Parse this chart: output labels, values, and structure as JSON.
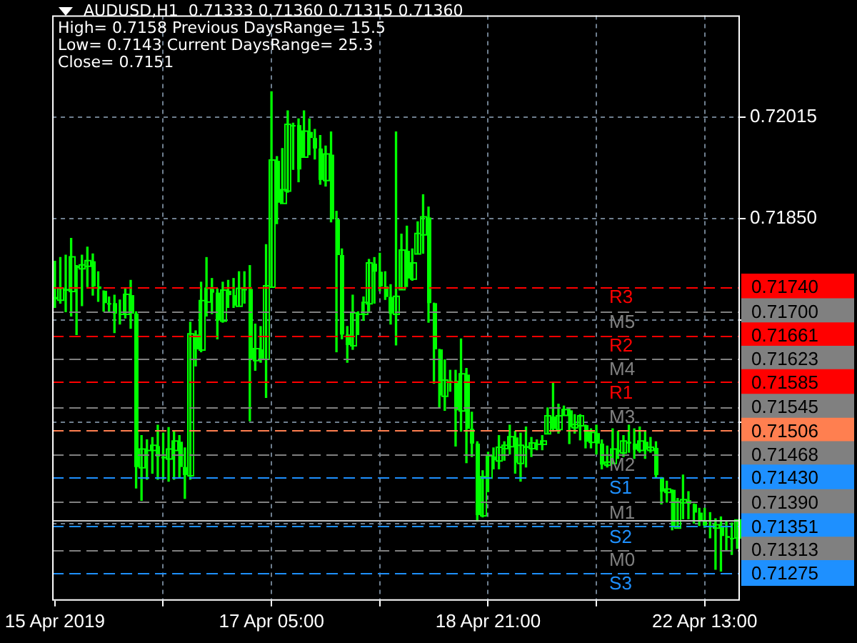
{
  "chart_data": {
    "type": "candlestick",
    "title": "AUDUSD,H1  0.71333 0.71360 0.71315 0.71360",
    "annotations": [
      "High= 0.7158 Previous DaysRange= 15.5",
      "Low= 0.7143 Current DaysRange= 25.3",
      "Close= 0.7151",
      {
        "text": "R3",
        "y": 0.7174
      },
      {
        "text": "M5",
        "y": 0.717
      },
      {
        "text": "R2",
        "y": 0.71661
      },
      {
        "text": "M4",
        "y": 0.71623
      },
      {
        "text": "R1",
        "y": 0.71585
      },
      {
        "text": "M3",
        "y": 0.71545
      },
      {
        "text": "M2",
        "y": 0.71468
      },
      {
        "text": "S1",
        "y": 0.7143
      },
      {
        "text": "M1",
        "y": 0.7139
      },
      {
        "text": "S2",
        "y": 0.71351
      },
      {
        "text": "M0",
        "y": 0.71313
      },
      {
        "text": "S3",
        "y": 0.71275
      }
    ],
    "categories": [
      "15 Apr 2019",
      null,
      null,
      null,
      null,
      null,
      null,
      null,
      null,
      null,
      null,
      null,
      null,
      null,
      null,
      null,
      null,
      null,
      null,
      null,
      null,
      null,
      null,
      null,
      null,
      null,
      null,
      null,
      null,
      null,
      null,
      null,
      null,
      null,
      null,
      null,
      null,
      null,
      null,
      null,
      "17 Apr 05:00",
      null,
      null,
      null,
      null,
      null,
      null,
      null,
      null,
      null,
      null,
      null,
      null,
      null,
      null,
      null,
      null,
      null,
      null,
      null,
      null,
      null,
      null,
      null,
      null,
      null,
      null,
      null,
      null,
      null,
      null,
      null,
      null,
      null,
      null,
      null,
      null,
      null,
      null,
      null,
      "18 Apr 21:00",
      null,
      null,
      null,
      null,
      null,
      null,
      null,
      null,
      null,
      null,
      null,
      null,
      null,
      null,
      null,
      null,
      null,
      null,
      null,
      null,
      null,
      null,
      null,
      null,
      null,
      null,
      null,
      null,
      null,
      null,
      null,
      null,
      null,
      null,
      null,
      null,
      null,
      null,
      null,
      "22 Apr 13:00",
      null,
      null,
      null,
      null,
      null,
      null
    ],
    "color": "#00ff00",
    "ohlc": [
      [
        0.71723,
        0.71781,
        0.71706,
        0.71719
      ],
      [
        0.71719,
        0.71787,
        0.71713,
        0.71736
      ],
      [
        0.71736,
        0.71791,
        0.71699,
        0.71733
      ],
      [
        0.71733,
        0.71818,
        0.71692,
        0.71787
      ],
      [
        0.71774,
        0.71774,
        0.71662,
        0.7177
      ],
      [
        0.7177,
        0.71791,
        0.71709,
        0.71774
      ],
      [
        0.71774,
        0.71804,
        0.7174,
        0.71781
      ],
      [
        0.71781,
        0.71793,
        0.71726,
        0.7174
      ],
      [
        0.7174,
        0.71764,
        0.71716,
        0.71736
      ],
      [
        0.71733,
        0.71733,
        0.717,
        0.71713
      ],
      [
        0.71713,
        0.71723,
        0.71699,
        0.71713
      ],
      [
        0.71713,
        0.71726,
        0.71665,
        0.71696
      ],
      [
        0.71696,
        0.71718,
        0.71679,
        0.71696
      ],
      [
        0.71696,
        0.71736,
        0.71689,
        0.71726
      ],
      [
        0.71726,
        0.7175,
        0.71672,
        0.71696
      ],
      [
        0.71696,
        0.71699,
        0.71413,
        0.71447
      ],
      [
        0.71447,
        0.71498,
        0.71393,
        0.71475
      ],
      [
        0.71475,
        0.71491,
        0.71427,
        0.71475
      ],
      [
        0.71475,
        0.71495,
        0.71437,
        0.71481
      ],
      [
        0.71481,
        0.71515,
        0.71427,
        0.71464
      ],
      [
        0.71464,
        0.71502,
        0.71427,
        0.71461
      ],
      [
        0.71461,
        0.71511,
        0.71424,
        0.71475
      ],
      [
        0.71475,
        0.71505,
        0.71427,
        0.71488
      ],
      [
        0.71488,
        0.71498,
        0.7143,
        0.71447
      ],
      [
        0.71447,
        0.71478,
        0.71396,
        0.71434
      ],
      [
        0.71434,
        0.71682,
        0.71427,
        0.71662
      ],
      [
        0.71662,
        0.71668,
        0.71611,
        0.71638
      ],
      [
        0.71638,
        0.71747,
        0.71634,
        0.71716
      ],
      [
        0.71716,
        0.71787,
        0.71692,
        0.71736
      ],
      [
        0.71736,
        0.71753,
        0.71696,
        0.7173
      ],
      [
        0.7173,
        0.71736,
        0.71655,
        0.71685
      ],
      [
        0.71685,
        0.71747,
        0.71682,
        0.71733
      ],
      [
        0.71733,
        0.7175,
        0.71706,
        0.71726
      ],
      [
        0.71726,
        0.71753,
        0.71706,
        0.71709
      ],
      [
        0.71709,
        0.71764,
        0.71709,
        0.71736
      ],
      [
        0.71736,
        0.71764,
        0.71713,
        0.71736
      ],
      [
        0.71736,
        0.71774,
        0.71522,
        0.71621
      ],
      [
        0.71621,
        0.71679,
        0.71604,
        0.71638
      ],
      [
        0.71638,
        0.71675,
        0.71617,
        0.71623
      ],
      [
        0.71623,
        0.71808,
        0.7156,
        0.7174
      ],
      [
        0.7174,
        0.72056,
        0.7174,
        0.71944
      ],
      [
        0.71944,
        0.71951,
        0.71842,
        0.71876
      ],
      [
        0.71876,
        0.71964,
        0.71876,
        0.71896
      ],
      [
        0.71896,
        0.72025,
        0.71893,
        0.72002
      ],
      [
        0.72002,
        0.72005,
        0.7193,
        0.72002
      ],
      [
        0.72002,
        0.72012,
        0.7191,
        0.7193
      ],
      [
        0.71951,
        0.72025,
        0.71951,
        0.71991
      ],
      [
        0.71991,
        0.72012,
        0.71954,
        0.71981
      ],
      [
        0.71981,
        0.71995,
        0.71947,
        0.71964
      ],
      [
        0.71964,
        0.71985,
        0.71906,
        0.71913
      ],
      [
        0.71913,
        0.71968,
        0.71903,
        0.71954
      ],
      [
        0.71954,
        0.71991,
        0.71845,
        0.71849
      ],
      [
        0.71849,
        0.71862,
        0.71634,
        0.71791
      ],
      [
        0.71791,
        0.71801,
        0.71655,
        0.71662
      ],
      [
        0.71662,
        0.71675,
        0.71617,
        0.71645
      ],
      [
        0.71645,
        0.71726,
        0.71638,
        0.71696
      ],
      [
        0.71696,
        0.71699,
        0.71662,
        0.71696
      ],
      [
        0.71696,
        0.71723,
        0.71685,
        0.71713
      ],
      [
        0.71713,
        0.71784,
        0.71699,
        0.71777
      ],
      [
        0.71777,
        0.71787,
        0.71713,
        0.71764
      ],
      [
        0.71764,
        0.71794,
        0.71733,
        0.7174
      ],
      [
        0.7174,
        0.71764,
        0.71719,
        0.71723
      ],
      [
        0.71723,
        0.71743,
        0.71679,
        0.71696
      ],
      [
        0.71696,
        0.71991,
        0.71645,
        0.71723
      ],
      [
        0.71736,
        0.71825,
        0.71736,
        0.71798
      ],
      [
        0.71798,
        0.71838,
        0.7174,
        0.71753
      ],
      [
        0.71753,
        0.71801,
        0.7175,
        0.71777
      ],
      [
        0.71794,
        0.71845,
        0.71794,
        0.71825
      ],
      [
        0.71825,
        0.71889,
        0.71794,
        0.71852
      ],
      [
        0.71852,
        0.71869,
        0.71682,
        0.71713
      ],
      [
        0.71713,
        0.71713,
        0.71583,
        0.71638
      ],
      [
        0.71638,
        0.71638,
        0.71543,
        0.71563
      ],
      [
        0.71563,
        0.71621,
        0.71539,
        0.71587
      ],
      [
        0.71587,
        0.71604,
        0.7157,
        0.71587
      ],
      [
        0.71587,
        0.71604,
        0.71481,
        0.71539
      ],
      [
        0.71539,
        0.71655,
        0.71505,
        0.71597
      ],
      [
        0.71597,
        0.71607,
        0.71454,
        0.71509
      ],
      [
        0.71509,
        0.71536,
        0.71464,
        0.71485
      ],
      [
        0.71485,
        0.71488,
        0.71359,
        0.71369
      ],
      [
        0.71369,
        0.71441,
        0.71366,
        0.7143
      ],
      [
        0.7143,
        0.71471,
        0.71407,
        0.71464
      ],
      [
        0.71464,
        0.71478,
        0.71444,
        0.71458
      ],
      [
        0.71458,
        0.71498,
        0.71444,
        0.71478
      ],
      [
        0.71478,
        0.71488,
        0.71458,
        0.71481
      ],
      [
        0.71481,
        0.71515,
        0.71468,
        0.71495
      ],
      [
        0.71495,
        0.71505,
        0.71437,
        0.71454
      ],
      [
        0.71454,
        0.71502,
        0.71424,
        0.71481
      ],
      [
        0.71481,
        0.71512,
        0.71447,
        0.71478
      ],
      [
        0.71478,
        0.71495,
        0.71464,
        0.71485
      ],
      [
        0.71485,
        0.71491,
        0.71475,
        0.71485
      ],
      [
        0.71485,
        0.71498,
        0.71475,
        0.71488
      ],
      [
        0.71502,
        0.71543,
        0.71502,
        0.71529
      ],
      [
        0.71529,
        0.71583,
        0.71505,
        0.71509
      ],
      [
        0.71509,
        0.71549,
        0.71502,
        0.71529
      ],
      [
        0.71532,
        0.71546,
        0.71532,
        0.71539
      ],
      [
        0.71539,
        0.71543,
        0.71485,
        0.71512
      ],
      [
        0.71512,
        0.71532,
        0.71502,
        0.71515
      ],
      [
        0.71515,
        0.71532,
        0.71491,
        0.71529
      ],
      [
        0.71515,
        0.71515,
        0.71478,
        0.71488
      ],
      [
        0.71488,
        0.71509,
        0.71478,
        0.71502
      ],
      [
        0.71502,
        0.71515,
        0.71468,
        0.71485
      ],
      [
        0.71485,
        0.71491,
        0.71444,
        0.71451
      ],
      [
        0.71451,
        0.71481,
        0.71447,
        0.71454
      ],
      [
        0.71454,
        0.71509,
        0.71454,
        0.71475
      ],
      [
        0.71475,
        0.71505,
        0.71461,
        0.71471
      ],
      [
        0.71471,
        0.71498,
        0.71464,
        0.71488
      ],
      [
        0.71488,
        0.71515,
        0.71471,
        0.71485
      ],
      [
        0.71485,
        0.71509,
        0.71461,
        0.71475
      ],
      [
        0.71475,
        0.71512,
        0.71471,
        0.71488
      ],
      [
        0.71488,
        0.71505,
        0.71461,
        0.71475
      ],
      [
        0.71475,
        0.71495,
        0.71471,
        0.71478
      ],
      [
        0.71478,
        0.71488,
        0.7143,
        0.71434
      ],
      [
        0.7143,
        0.7143,
        0.71387,
        0.71407
      ],
      [
        0.71407,
        0.71424,
        0.7139,
        0.7141
      ],
      [
        0.7141,
        0.7141,
        0.71345,
        0.71349
      ],
      [
        0.71349,
        0.71396,
        0.71349,
        0.7139
      ],
      [
        0.7139,
        0.71434,
        0.71363,
        0.71393
      ],
      [
        0.71393,
        0.71407,
        0.71363,
        0.71387
      ],
      [
        0.71387,
        0.71387,
        0.71356,
        0.71373
      ],
      [
        0.71373,
        0.7138,
        0.71352,
        0.71359
      ],
      [
        0.71359,
        0.7138,
        0.71349,
        0.71352
      ],
      [
        0.71352,
        0.71373,
        0.71332,
        0.71349
      ],
      [
        0.71349,
        0.71363,
        0.71281,
        0.71352
      ],
      [
        0.71352,
        0.71366,
        0.71278,
        0.71335
      ],
      [
        0.71335,
        0.71359,
        0.71311,
        0.71332
      ],
      [
        0.71332,
        0.71356,
        0.71305,
        0.71332
      ],
      [
        0.71333,
        0.7136,
        0.71315,
        0.7136
      ]
    ],
    "ylim": [
      0.7123,
      0.7218
    ],
    "yticks": [
      {
        "value": 0.71355,
        "label": null
      },
      {
        "value": 0.7152,
        "label": null
      },
      {
        "value": 0.71685,
        "label": null
      },
      {
        "value": 0.7185,
        "label": "0.71850"
      },
      {
        "value": 0.72015,
        "label": "0.72015"
      }
    ],
    "grid": true,
    "ref_lines": [
      {
        "axis": "y",
        "value": 0.7174,
        "label": "0.71740",
        "color": "#ff0000",
        "line_style": "dashed"
      },
      {
        "axis": "y",
        "value": 0.717,
        "label": "0.71700",
        "color": "#808080",
        "line_style": "dashed"
      },
      {
        "axis": "y",
        "value": 0.71661,
        "label": "0.71661",
        "color": "#ff0000",
        "line_style": "dashed"
      },
      {
        "axis": "y",
        "value": 0.71623,
        "label": "0.71623",
        "color": "#808080",
        "line_style": "dashed"
      },
      {
        "axis": "y",
        "value": 0.71585,
        "label": "0.71585",
        "color": "#ff0000",
        "line_style": "dashed"
      },
      {
        "axis": "y",
        "value": 0.71545,
        "label": "0.71545",
        "color": "#808080",
        "line_style": "dashed"
      },
      {
        "axis": "y",
        "value": 0.71506,
        "label": "0.71506",
        "color": "#ff7f50",
        "line_style": "dashed"
      },
      {
        "axis": "y",
        "value": 0.71468,
        "label": "0.71468",
        "color": "#808080",
        "line_style": "dashed"
      },
      {
        "axis": "y",
        "value": 0.7143,
        "label": "0.71430",
        "color": "#1e90ff",
        "line_style": "dashed"
      },
      {
        "axis": "y",
        "value": 0.7139,
        "label": "0.71390",
        "color": "#808080",
        "line_style": "dashed"
      },
      {
        "axis": "y",
        "value": 0.7136,
        "label": null,
        "color": "#c0c0c0",
        "line_style": "solid"
      },
      {
        "axis": "y",
        "value": 0.71351,
        "label": "0.71351",
        "color": "#1e90ff",
        "line_style": "dashed"
      },
      {
        "axis": "y",
        "value": 0.71313,
        "label": "0.71313",
        "color": "#808080",
        "line_style": "dashed"
      },
      {
        "axis": "y",
        "value": 0.71275,
        "label": "0.71275",
        "color": "#1e90ff",
        "line_style": "dashed"
      }
    ],
    "legend": false
  }
}
